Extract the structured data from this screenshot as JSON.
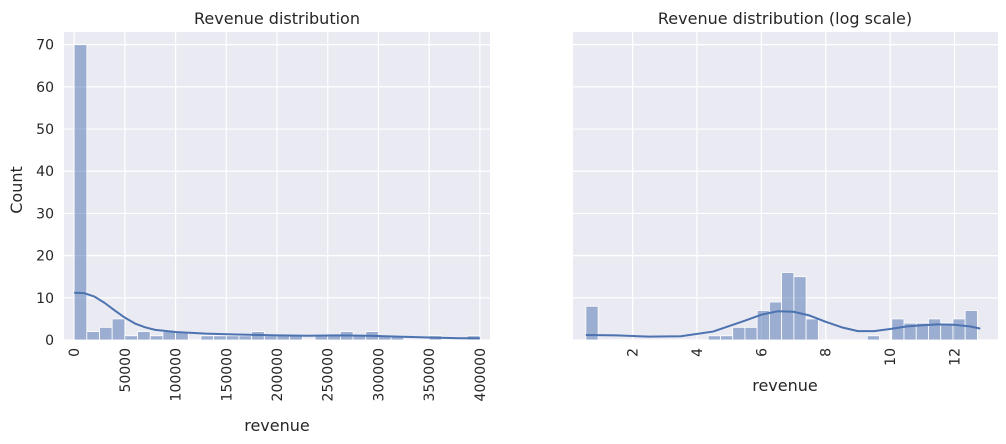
{
  "figure": {
    "shared_ylabel": "Count"
  },
  "chart_data": [
    {
      "type": "bar",
      "subtype": "histogram-with-kde",
      "title": "Revenue distribution",
      "xlabel": "revenue",
      "ylabel": "Count",
      "xlim": [
        -10000,
        410000
      ],
      "ylim": [
        0,
        73
      ],
      "x_ticks": [
        0,
        50000,
        100000,
        150000,
        200000,
        250000,
        300000,
        350000,
        400000
      ],
      "x_tick_labels": [
        "0",
        "50000",
        "100000",
        "150000",
        "200000",
        "250000",
        "300000",
        "350000",
        "400000"
      ],
      "x_tick_rotation": "vertical",
      "y_ticks": [
        0,
        10,
        20,
        30,
        40,
        50,
        60,
        70
      ],
      "grid": true,
      "style": "seaborn darkgrid",
      "bar_color": "#4c72b0",
      "bar_alpha": 0.5,
      "bins_start": 0,
      "bin_width": 12500,
      "counts": [
        70,
        2,
        3,
        5,
        1,
        2,
        1,
        2,
        2,
        0,
        1,
        1,
        1,
        1,
        2,
        1,
        1,
        1,
        0,
        1,
        1,
        2,
        1,
        2,
        1,
        1,
        0,
        0,
        1,
        0,
        0,
        1
      ],
      "kde": {
        "color": "#4c72b0",
        "x": [
          0,
          10000,
          20000,
          30000,
          40000,
          50000,
          60000,
          70000,
          80000,
          100000,
          130000,
          160000,
          200000,
          230000,
          260000,
          290000,
          320000,
          350000,
          380000,
          400000
        ],
        "y": [
          11.2,
          11.1,
          10.3,
          8.8,
          7.0,
          5.3,
          3.9,
          3.0,
          2.4,
          1.9,
          1.5,
          1.3,
          1.1,
          1.0,
          1.1,
          1.0,
          0.8,
          0.6,
          0.4,
          0.4
        ]
      }
    },
    {
      "type": "bar",
      "subtype": "histogram-with-kde",
      "title": "Revenue distribution (log scale)",
      "xlabel": "revenue",
      "ylabel": "",
      "xlim": [
        0.15,
        13.35
      ],
      "ylim": [
        0,
        73
      ],
      "x_ticks": [
        2,
        4,
        6,
        8,
        10,
        12
      ],
      "x_tick_labels": [
        "2",
        "4",
        "6",
        "8",
        "10",
        "12"
      ],
      "x_tick_rotation": "vertical",
      "y_ticks": [
        0,
        10,
        20,
        30,
        40,
        50,
        60,
        70
      ],
      "show_y_tick_labels": false,
      "grid": true,
      "style": "seaborn darkgrid",
      "bar_color": "#4c72b0",
      "bar_alpha": 0.5,
      "bins_start": 0.55,
      "bin_width": 0.38,
      "counts": [
        8,
        0,
        0,
        0,
        0,
        0,
        0,
        0,
        0,
        0,
        1,
        1,
        3,
        3,
        7,
        9,
        16,
        15,
        5,
        0,
        0,
        0,
        0,
        1,
        0,
        5,
        4,
        4,
        5,
        4,
        5,
        7
      ],
      "kde": {
        "color": "#4c72b0",
        "x": [
          0.55,
          1.5,
          2.5,
          3.5,
          4.5,
          5.5,
          6.0,
          6.5,
          7.0,
          7.5,
          8.0,
          8.5,
          9.0,
          9.5,
          10.0,
          10.5,
          11.0,
          11.5,
          12.0,
          12.5,
          12.8
        ],
        "y": [
          1.2,
          1.1,
          0.8,
          0.9,
          2.0,
          4.6,
          6.0,
          6.8,
          6.7,
          5.8,
          4.3,
          3.0,
          2.1,
          2.1,
          2.6,
          3.2,
          3.5,
          3.7,
          3.6,
          3.2,
          2.7
        ]
      }
    }
  ]
}
